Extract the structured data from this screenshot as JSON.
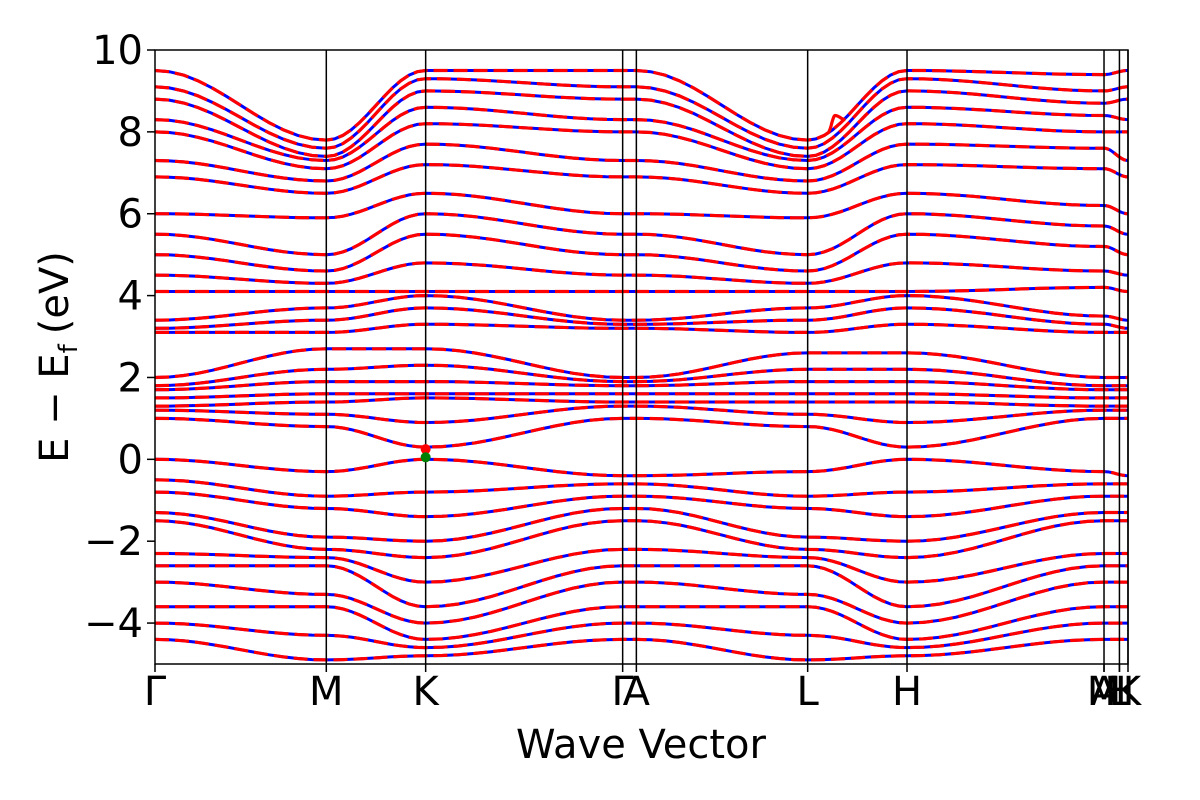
{
  "chart_data": {
    "type": "line",
    "title": "",
    "xlabel": "Wave Vector",
    "ylabel": {
      "main": "E − E",
      "sub": "f",
      "unit": "(eV)"
    },
    "ylim": [
      -5,
      10
    ],
    "yticks": [
      10,
      8,
      6,
      4,
      2,
      0,
      -2,
      -4
    ],
    "yticklabels": [
      "10",
      "8",
      "6",
      "4",
      "2",
      "0",
      "−2",
      "−4"
    ],
    "grid": false,
    "legend": "none",
    "kpath": {
      "length": 5.68,
      "labels": [
        "Γ",
        "M",
        "K",
        "Γ",
        "A",
        "L",
        "H",
        "A",
        "M",
        "L",
        "H",
        "K"
      ],
      "tick_label_text": [
        "Γ",
        "M",
        "K",
        "Γ",
        "A",
        "L",
        "H",
        "A",
        "M",
        "L",
        "H",
        "K"
      ],
      "positions": [
        0.0,
        1.0,
        1.58,
        2.73,
        2.81,
        3.81,
        4.39,
        5.54,
        5.54,
        5.63,
        5.63,
        5.68
      ],
      "vertical_lines": [
        1.0,
        1.58,
        2.73,
        2.81,
        3.81,
        4.39,
        5.54,
        5.63,
        5.68
      ]
    },
    "series": [
      {
        "style": "solid",
        "color": "#0000ff",
        "bands": [
          {
            "x": [
              0,
              1.0,
              1.58,
              2.73,
              2.81,
              3.81,
              4.39,
              5.54,
              5.68
            ],
            "y": [
              9.5,
              7.8,
              9.5,
              9.5,
              9.5,
              7.8,
              9.5,
              9.4,
              9.5
            ]
          },
          {
            "x": [
              0,
              1.0,
              1.58,
              2.73,
              2.81,
              3.81,
              4.39,
              5.54,
              5.68
            ],
            "y": [
              9.1,
              7.6,
              9.3,
              9.1,
              9.1,
              7.6,
              9.3,
              9.0,
              9.1
            ]
          },
          {
            "x": [
              0,
              1.0,
              1.58,
              2.73,
              2.81,
              3.81,
              4.39,
              5.54,
              5.68
            ],
            "y": [
              8.8,
              7.4,
              9.0,
              8.8,
              8.8,
              7.4,
              9.0,
              8.7,
              8.8
            ]
          },
          {
            "x": [
              0,
              1.0,
              1.58,
              2.73,
              2.81,
              3.81,
              4.39,
              5.54,
              5.68
            ],
            "y": [
              8.3,
              7.3,
              8.6,
              8.3,
              8.3,
              7.3,
              8.6,
              8.4,
              8.3
            ]
          },
          {
            "x": [
              0,
              1.0,
              1.58,
              2.73,
              2.81,
              3.81,
              4.39,
              5.54,
              5.68
            ],
            "y": [
              8.0,
              7.1,
              8.2,
              8.0,
              8.0,
              7.1,
              8.2,
              8.0,
              8.0
            ]
          },
          {
            "x": [
              0,
              1.0,
              1.58,
              2.73,
              2.81,
              3.81,
              4.39,
              5.54,
              5.68
            ],
            "y": [
              7.3,
              6.8,
              7.7,
              7.3,
              7.3,
              6.8,
              7.7,
              7.6,
              7.3
            ]
          },
          {
            "x": [
              0,
              1.0,
              1.58,
              2.73,
              2.81,
              3.81,
              4.39,
              5.54,
              5.68
            ],
            "y": [
              6.9,
              6.5,
              7.2,
              6.9,
              6.9,
              6.5,
              7.2,
              7.1,
              6.9
            ]
          },
          {
            "x": [
              0,
              1.0,
              1.58,
              2.73,
              2.81,
              3.81,
              4.39,
              5.54,
              5.68
            ],
            "y": [
              6.0,
              5.9,
              6.5,
              6.0,
              6.0,
              5.9,
              6.5,
              6.2,
              6.0
            ]
          },
          {
            "x": [
              0,
              1.0,
              1.58,
              2.73,
              2.81,
              3.81,
              4.39,
              5.54,
              5.68
            ],
            "y": [
              5.5,
              5.0,
              6.0,
              5.5,
              5.5,
              5.0,
              6.0,
              5.7,
              5.5
            ]
          },
          {
            "x": [
              0,
              1.0,
              1.58,
              2.73,
              2.81,
              3.81,
              4.39,
              5.54,
              5.68
            ],
            "y": [
              5.0,
              4.6,
              5.5,
              5.0,
              5.0,
              4.6,
              5.5,
              5.2,
              5.0
            ]
          },
          {
            "x": [
              0,
              1.0,
              1.58,
              2.73,
              2.81,
              3.81,
              4.39,
              5.54,
              5.68
            ],
            "y": [
              4.5,
              4.3,
              4.8,
              4.5,
              4.5,
              4.3,
              4.8,
              4.6,
              4.5
            ]
          },
          {
            "x": [
              0,
              1.0,
              1.58,
              2.73,
              2.81,
              3.81,
              4.39,
              5.54,
              5.68
            ],
            "y": [
              4.1,
              4.1,
              4.1,
              4.1,
              4.1,
              4.1,
              4.1,
              4.2,
              4.1
            ]
          },
          {
            "x": [
              0,
              1.0,
              1.58,
              2.73,
              2.81,
              3.81,
              4.39,
              5.54,
              5.68
            ],
            "y": [
              3.4,
              3.7,
              4.0,
              3.4,
              3.4,
              3.7,
              4.0,
              3.5,
              3.4
            ]
          },
          {
            "x": [
              0,
              1.0,
              1.58,
              2.73,
              2.81,
              3.81,
              4.39,
              5.54,
              5.68
            ],
            "y": [
              3.2,
              3.4,
              3.7,
              3.3,
              3.3,
              3.4,
              3.7,
              3.3,
              3.2
            ]
          },
          {
            "x": [
              0,
              1.0,
              1.58,
              2.73,
              2.81,
              3.81,
              4.39,
              5.54,
              5.68
            ],
            "y": [
              3.1,
              3.1,
              3.3,
              3.2,
              3.2,
              3.1,
              3.3,
              3.1,
              3.1
            ]
          },
          {
            "x": [
              0,
              1.0,
              1.58,
              2.73,
              2.81,
              3.81,
              4.39,
              5.54,
              5.68
            ],
            "y": [
              2.0,
              2.7,
              2.7,
              2.0,
              2.0,
              2.6,
              2.6,
              2.0,
              2.0
            ]
          },
          {
            "x": [
              0,
              1.0,
              1.58,
              2.73,
              2.81,
              3.81,
              4.39,
              5.54,
              5.68
            ],
            "y": [
              1.8,
              2.2,
              2.3,
              1.9,
              1.9,
              2.2,
              2.2,
              1.8,
              1.8
            ]
          },
          {
            "x": [
              0,
              1.0,
              1.58,
              2.73,
              2.81,
              3.81,
              4.39,
              5.54,
              5.68
            ],
            "y": [
              1.7,
              1.9,
              1.9,
              1.8,
              1.8,
              1.9,
              1.9,
              1.7,
              1.7
            ]
          },
          {
            "x": [
              0,
              1.0,
              1.58,
              2.73,
              2.81,
              3.81,
              4.39,
              5.54,
              5.68
            ],
            "y": [
              1.5,
              1.6,
              1.6,
              1.6,
              1.6,
              1.6,
              1.6,
              1.5,
              1.5
            ]
          },
          {
            "x": [
              0,
              1.0,
              1.58,
              2.73,
              2.81,
              3.81,
              4.39,
              5.54,
              5.68
            ],
            "y": [
              1.3,
              1.4,
              1.5,
              1.4,
              1.4,
              1.4,
              1.4,
              1.3,
              1.3
            ]
          },
          {
            "x": [
              0,
              1.0,
              1.58,
              2.73,
              2.81,
              3.81,
              4.39,
              5.54,
              5.68
            ],
            "y": [
              1.2,
              1.1,
              0.9,
              1.3,
              1.3,
              1.1,
              0.9,
              1.2,
              1.2
            ]
          },
          {
            "x": [
              0,
              1.0,
              1.58,
              2.73,
              2.81,
              3.81,
              4.39,
              5.54,
              5.68
            ],
            "y": [
              1.0,
              0.8,
              0.3,
              1.0,
              1.0,
              0.8,
              0.3,
              1.0,
              1.0
            ]
          },
          {
            "x": [
              0,
              1.0,
              1.58,
              2.73,
              2.81,
              3.81,
              4.39,
              5.54,
              5.68
            ],
            "y": [
              0.0,
              -0.3,
              0.0,
              -0.4,
              -0.4,
              -0.3,
              0.0,
              -0.3,
              -0.4
            ]
          },
          {
            "x": [
              0,
              1.0,
              1.58,
              2.73,
              2.81,
              3.81,
              4.39,
              5.54,
              5.68
            ],
            "y": [
              -0.5,
              -0.9,
              -0.8,
              -0.6,
              -0.6,
              -0.9,
              -0.8,
              -0.6,
              -0.6
            ]
          },
          {
            "x": [
              0,
              1.0,
              1.58,
              2.73,
              2.81,
              3.81,
              4.39,
              5.54,
              5.68
            ],
            "y": [
              -0.8,
              -1.2,
              -1.4,
              -0.9,
              -0.9,
              -1.2,
              -1.4,
              -0.9,
              -0.9
            ]
          },
          {
            "x": [
              0,
              1.0,
              1.58,
              2.73,
              2.81,
              3.81,
              4.39,
              5.54,
              5.68
            ],
            "y": [
              -1.3,
              -1.9,
              -2.0,
              -1.2,
              -1.2,
              -1.9,
              -2.0,
              -1.3,
              -1.3
            ]
          },
          {
            "x": [
              0,
              1.0,
              1.58,
              2.73,
              2.81,
              3.81,
              4.39,
              5.54,
              5.68
            ],
            "y": [
              -1.5,
              -2.2,
              -2.4,
              -1.5,
              -1.5,
              -2.2,
              -2.4,
              -1.5,
              -1.5
            ]
          },
          {
            "x": [
              0,
              1.0,
              1.58,
              2.73,
              2.81,
              3.81,
              4.39,
              5.54,
              5.68
            ],
            "y": [
              -2.3,
              -2.4,
              -3.0,
              -2.2,
              -2.2,
              -2.4,
              -3.0,
              -2.3,
              -2.3
            ]
          },
          {
            "x": [
              0,
              1.0,
              1.58,
              2.73,
              2.81,
              3.81,
              4.39,
              5.54,
              5.68
            ],
            "y": [
              -2.6,
              -2.6,
              -3.6,
              -2.6,
              -2.6,
              -2.6,
              -3.6,
              -2.6,
              -2.6
            ]
          },
          {
            "x": [
              0,
              1.0,
              1.58,
              2.73,
              2.81,
              3.81,
              4.39,
              5.54,
              5.68
            ],
            "y": [
              -3.0,
              -3.3,
              -4.0,
              -3.0,
              -3.0,
              -3.3,
              -4.0,
              -3.0,
              -3.0
            ]
          },
          {
            "x": [
              0,
              1.0,
              1.58,
              2.73,
              2.81,
              3.81,
              4.39,
              5.54,
              5.68
            ],
            "y": [
              -3.6,
              -3.6,
              -4.4,
              -3.6,
              -3.6,
              -3.6,
              -4.4,
              -3.6,
              -3.6
            ]
          },
          {
            "x": [
              0,
              1.0,
              1.58,
              2.73,
              2.81,
              3.81,
              4.39,
              5.54,
              5.68
            ],
            "y": [
              -4.0,
              -4.3,
              -4.6,
              -4.0,
              -4.0,
              -4.3,
              -4.6,
              -4.0,
              -4.0
            ]
          },
          {
            "x": [
              0,
              1.0,
              1.58,
              2.73,
              2.81,
              3.81,
              4.39,
              5.54,
              5.68
            ],
            "y": [
              -4.4,
              -4.9,
              -4.8,
              -4.4,
              -4.4,
              -4.9,
              -4.8,
              -4.4,
              -4.4
            ]
          }
        ]
      },
      {
        "style": "dashed",
        "color": "#ff0000",
        "bands": "same as solid series"
      }
    ],
    "annotations": [
      {
        "type": "marker",
        "color": "#ff0000",
        "x": 1.58,
        "y": 0.25
      },
      {
        "type": "marker",
        "color": "#008000",
        "x": 1.58,
        "y": 0.05
      },
      {
        "type": "red-segment",
        "color": "#ff0000",
        "x": [
          3.93,
          3.97,
          4.03
        ],
        "y": [
          8.0,
          8.4,
          8.3
        ]
      }
    ]
  }
}
